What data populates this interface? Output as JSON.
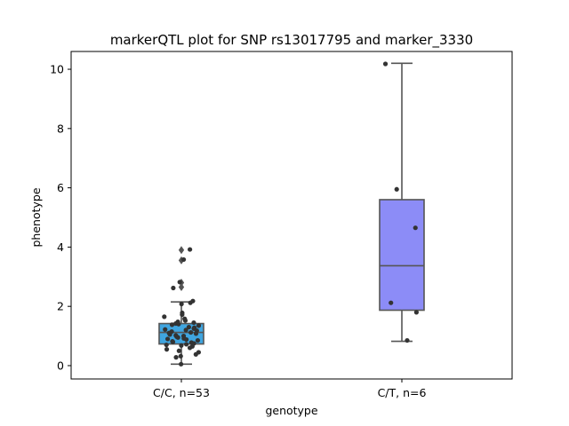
{
  "chart_data": {
    "type": "box",
    "title": "markerQTL plot for SNP rs13017795 and marker_3330",
    "xlabel": "genotype",
    "ylabel": "phenotype",
    "ylim": [
      -0.45,
      10.6
    ],
    "yticks": [
      0,
      2,
      4,
      6,
      8,
      10
    ],
    "categories": [
      "C/C, n=53",
      "C/T, n=6"
    ],
    "boxes": [
      {
        "category": "C/C, n=53",
        "color": "#3fa5e0",
        "whisker_low": 0.05,
        "q1": 0.73,
        "median": 1.12,
        "q3": 1.42,
        "whisker_high": 2.15,
        "outliers": [
          3.9,
          3.55,
          2.8,
          2.65
        ]
      },
      {
        "category": "C/T, n=6",
        "color": "#8c8cf7",
        "whisker_low": 0.82,
        "q1": 1.87,
        "median": 3.37,
        "q3": 5.6,
        "whisker_high": 10.2,
        "outliers": []
      }
    ],
    "points": [
      {
        "category": "C/C, n=53",
        "values": [
          3.92,
          3.58,
          2.82,
          2.62,
          2.18,
          2.12,
          2.08,
          1.78,
          1.72,
          1.65,
          1.58,
          1.52,
          1.48,
          1.45,
          1.42,
          1.4,
          1.38,
          1.35,
          1.3,
          1.28,
          1.25,
          1.22,
          1.2,
          1.18,
          1.15,
          1.12,
          1.1,
          1.08,
          1.05,
          1.02,
          1.0,
          0.98,
          0.95,
          0.92,
          0.9,
          0.88,
          0.85,
          0.82,
          0.8,
          0.78,
          0.75,
          0.72,
          0.7,
          0.68,
          0.65,
          0.6,
          0.55,
          0.5,
          0.45,
          0.38,
          0.32,
          0.28,
          0.05
        ]
      },
      {
        "category": "C/T, n=6",
        "values": [
          10.18,
          5.95,
          4.65,
          2.12,
          1.8,
          0.85
        ]
      }
    ],
    "grid": false,
    "legend": "none"
  }
}
